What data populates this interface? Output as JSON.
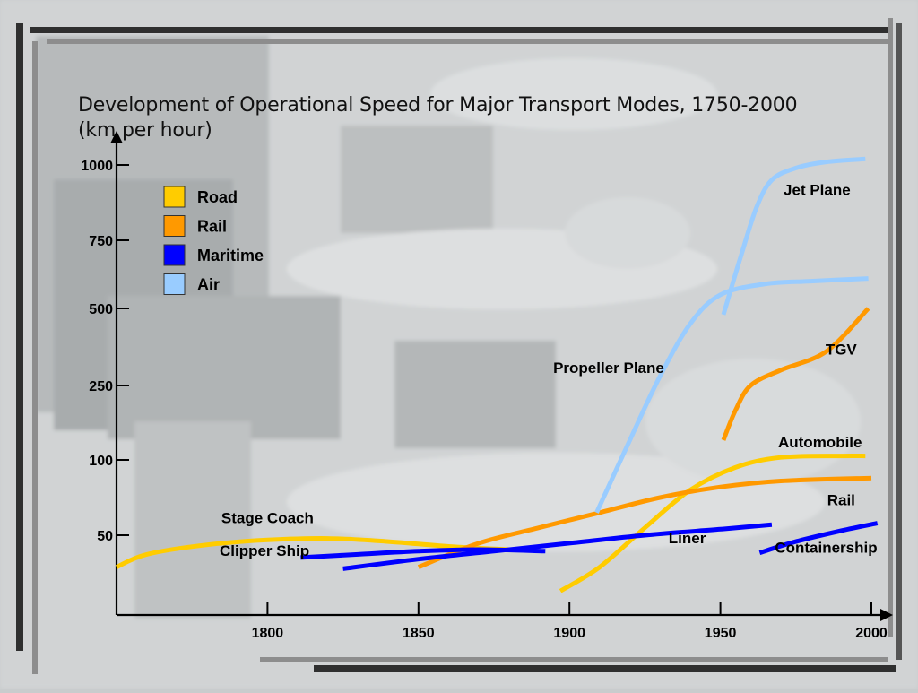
{
  "slide": {
    "title_line1": "Development of Operational Speed for Major Transport Modes, 1750-2000",
    "title_line2": "(km per hour)"
  },
  "chart_data": {
    "type": "line",
    "title": "Development of Operational Speed for Major Transport Modes, 1750-2000 (km per hour)",
    "xlabel": "",
    "ylabel": "",
    "xlim": [
      1750,
      2000
    ],
    "x_ticks": [
      1800,
      1850,
      1900,
      1950,
      2000
    ],
    "y_ticks": [
      50,
      100,
      250,
      500,
      750,
      1000
    ],
    "y_scale": "piecewise (50 → 100 → 250 → 500 → 750 → 1000, equal spacing)",
    "grid": false,
    "legend_position": "top-left",
    "legend": [
      {
        "name": "Road",
        "color": "#ffcc00"
      },
      {
        "name": "Rail",
        "color": "#ff9900"
      },
      {
        "name": "Maritime",
        "color": "#0000ff"
      },
      {
        "name": "Air",
        "color": "#99ccff"
      }
    ],
    "series": [
      {
        "name": "Stage Coach",
        "mode": "Road",
        "color": "#ffcc00",
        "points": [
          [
            1750,
            30
          ],
          [
            1760,
            38
          ],
          [
            1780,
            44
          ],
          [
            1800,
            47
          ],
          [
            1820,
            48
          ],
          [
            1840,
            46
          ],
          [
            1860,
            43
          ],
          [
            1880,
            41
          ]
        ]
      },
      {
        "name": "Automobile",
        "mode": "Road",
        "color": "#ffcc00",
        "points": [
          [
            1897,
            15
          ],
          [
            1910,
            30
          ],
          [
            1925,
            55
          ],
          [
            1940,
            80
          ],
          [
            1955,
            95
          ],
          [
            1970,
            105
          ],
          [
            1990,
            108
          ],
          [
            1998,
            108
          ]
        ]
      },
      {
        "name": "Rail",
        "mode": "Rail",
        "color": "#ff9900",
        "points": [
          [
            1850,
            30
          ],
          [
            1870,
            45
          ],
          [
            1890,
            55
          ],
          [
            1910,
            65
          ],
          [
            1930,
            75
          ],
          [
            1950,
            82
          ],
          [
            1970,
            86
          ],
          [
            2000,
            88
          ]
        ]
      },
      {
        "name": "TGV",
        "mode": "Rail",
        "color": "#ff9900",
        "points": [
          [
            1951,
            140
          ],
          [
            1955,
            200
          ],
          [
            1960,
            250
          ],
          [
            1970,
            300
          ],
          [
            1985,
            360
          ],
          [
            1999,
            500
          ]
        ]
      },
      {
        "name": "Clipper Ship",
        "mode": "Maritime",
        "color": "#0000ff",
        "points": [
          [
            1811,
            36
          ],
          [
            1830,
            38
          ],
          [
            1850,
            40
          ],
          [
            1870,
            41
          ],
          [
            1892,
            40
          ]
        ]
      },
      {
        "name": "Liner",
        "mode": "Maritime",
        "color": "#0000ff",
        "points": [
          [
            1825,
            29
          ],
          [
            1850,
            35
          ],
          [
            1875,
            40
          ],
          [
            1900,
            45
          ],
          [
            1925,
            50
          ],
          [
            1950,
            54
          ],
          [
            1967,
            57
          ]
        ]
      },
      {
        "name": "Containership",
        "mode": "Maritime",
        "color": "#0000ff",
        "points": [
          [
            1963,
            39
          ],
          [
            1975,
            46
          ],
          [
            1990,
            53
          ],
          [
            2002,
            58
          ]
        ]
      },
      {
        "name": "Propeller Plane",
        "mode": "Air",
        "color": "#99ccff",
        "points": [
          [
            1909,
            65
          ],
          [
            1920,
            140
          ],
          [
            1930,
            280
          ],
          [
            1940,
            450
          ],
          [
            1950,
            550
          ],
          [
            1965,
            590
          ],
          [
            1980,
            600
          ],
          [
            1999,
            610
          ]
        ]
      },
      {
        "name": "Jet Plane",
        "mode": "Air",
        "color": "#99ccff",
        "points": [
          [
            1951,
            480
          ],
          [
            1957,
            700
          ],
          [
            1962,
            860
          ],
          [
            1967,
            950
          ],
          [
            1975,
            990
          ],
          [
            1985,
            1010
          ],
          [
            1998,
            1020
          ]
        ]
      }
    ],
    "annotations": [
      {
        "text": "Stage Coach",
        "x": 1800,
        "y": 58
      },
      {
        "text": "Clipper Ship",
        "x": 1799,
        "y": 37
      },
      {
        "text": "Rail",
        "x": 1990,
        "y": 70
      },
      {
        "text": "Automobile",
        "x": 1983,
        "y": 125
      },
      {
        "text": "TGV",
        "x": 1990,
        "y": 350
      },
      {
        "text": "Propeller Plane",
        "x": 1913,
        "y": 290
      },
      {
        "text": "Jet Plane",
        "x": 1982,
        "y": 900
      },
      {
        "text": "Liner",
        "x": 1939,
        "y": 45
      },
      {
        "text": "Containership",
        "x": 1985,
        "y": 39
      }
    ]
  }
}
